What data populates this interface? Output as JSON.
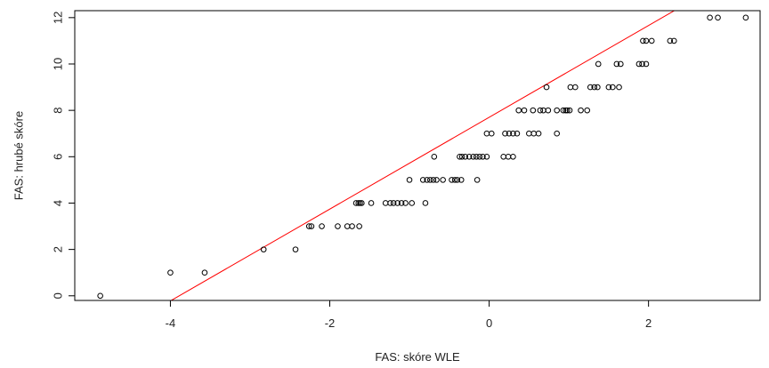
{
  "chart_data": {
    "type": "scatter",
    "title": "",
    "xlabel": "FAS: skóre WLE",
    "ylabel": "FAS: hrubé skóre",
    "xlim": [
      -5.2,
      3.4
    ],
    "ylim": [
      -0.2,
      12.3
    ],
    "x_ticks": [
      -4,
      -2,
      0,
      2
    ],
    "y_ticks": [
      0,
      2,
      4,
      6,
      8,
      10,
      12
    ],
    "x_tick_labels": [
      "-4",
      "-2",
      "0",
      "2"
    ],
    "y_tick_labels": [
      "0",
      "2",
      "4",
      "6",
      "8",
      "10",
      "12"
    ],
    "grid": false,
    "colors": {
      "points": "#000000",
      "fit_line": "#ff0000",
      "axes": "#000000"
    },
    "fit_line": {
      "intercept": 7.7,
      "slope": 1.98
    },
    "points": [
      [
        -4.88,
        0
      ],
      [
        -4.0,
        1
      ],
      [
        -3.57,
        1
      ],
      [
        -2.83,
        2
      ],
      [
        -2.43,
        2
      ],
      [
        -2.26,
        3
      ],
      [
        -2.23,
        3
      ],
      [
        -2.1,
        3
      ],
      [
        -1.9,
        3
      ],
      [
        -1.78,
        3
      ],
      [
        -1.72,
        3
      ],
      [
        -1.63,
        3
      ],
      [
        -1.67,
        4
      ],
      [
        -1.64,
        4
      ],
      [
        -1.62,
        4
      ],
      [
        -1.6,
        4
      ],
      [
        -1.48,
        4
      ],
      [
        -1.3,
        4
      ],
      [
        -1.24,
        4
      ],
      [
        -1.2,
        4
      ],
      [
        -1.15,
        4
      ],
      [
        -1.1,
        4
      ],
      [
        -1.05,
        4
      ],
      [
        -0.97,
        4
      ],
      [
        -0.8,
        4
      ],
      [
        -1.0,
        5
      ],
      [
        -0.83,
        5
      ],
      [
        -0.78,
        5
      ],
      [
        -0.74,
        5
      ],
      [
        -0.7,
        5
      ],
      [
        -0.66,
        5
      ],
      [
        -0.58,
        5
      ],
      [
        -0.47,
        5
      ],
      [
        -0.43,
        5
      ],
      [
        -0.4,
        5
      ],
      [
        -0.35,
        5
      ],
      [
        -0.15,
        5
      ],
      [
        -0.69,
        6
      ],
      [
        -0.37,
        6
      ],
      [
        -0.34,
        6
      ],
      [
        -0.3,
        6
      ],
      [
        -0.25,
        6
      ],
      [
        -0.2,
        6
      ],
      [
        -0.16,
        6
      ],
      [
        -0.12,
        6
      ],
      [
        -0.08,
        6
      ],
      [
        -0.03,
        6
      ],
      [
        0.18,
        6
      ],
      [
        0.24,
        6
      ],
      [
        0.3,
        6
      ],
      [
        -0.03,
        7
      ],
      [
        0.03,
        7
      ],
      [
        0.2,
        7
      ],
      [
        0.25,
        7
      ],
      [
        0.3,
        7
      ],
      [
        0.35,
        7
      ],
      [
        0.5,
        7
      ],
      [
        0.56,
        7
      ],
      [
        0.62,
        7
      ],
      [
        0.85,
        7
      ],
      [
        0.37,
        8
      ],
      [
        0.44,
        8
      ],
      [
        0.55,
        8
      ],
      [
        0.64,
        8
      ],
      [
        0.68,
        8
      ],
      [
        0.74,
        8
      ],
      [
        0.85,
        8
      ],
      [
        0.93,
        8
      ],
      [
        0.96,
        8
      ],
      [
        0.98,
        8
      ],
      [
        1.01,
        8
      ],
      [
        1.15,
        8
      ],
      [
        1.23,
        8
      ],
      [
        0.72,
        9
      ],
      [
        1.02,
        9
      ],
      [
        1.08,
        9
      ],
      [
        1.27,
        9
      ],
      [
        1.32,
        9
      ],
      [
        1.36,
        9
      ],
      [
        1.5,
        9
      ],
      [
        1.55,
        9
      ],
      [
        1.63,
        9
      ],
      [
        1.37,
        10
      ],
      [
        1.6,
        10
      ],
      [
        1.65,
        10
      ],
      [
        1.88,
        10
      ],
      [
        1.92,
        10
      ],
      [
        1.97,
        10
      ],
      [
        1.93,
        11
      ],
      [
        1.97,
        11
      ],
      [
        2.04,
        11
      ],
      [
        2.27,
        11
      ],
      [
        2.32,
        11
      ],
      [
        2.77,
        12
      ],
      [
        2.87,
        12
      ],
      [
        3.22,
        12
      ]
    ]
  }
}
